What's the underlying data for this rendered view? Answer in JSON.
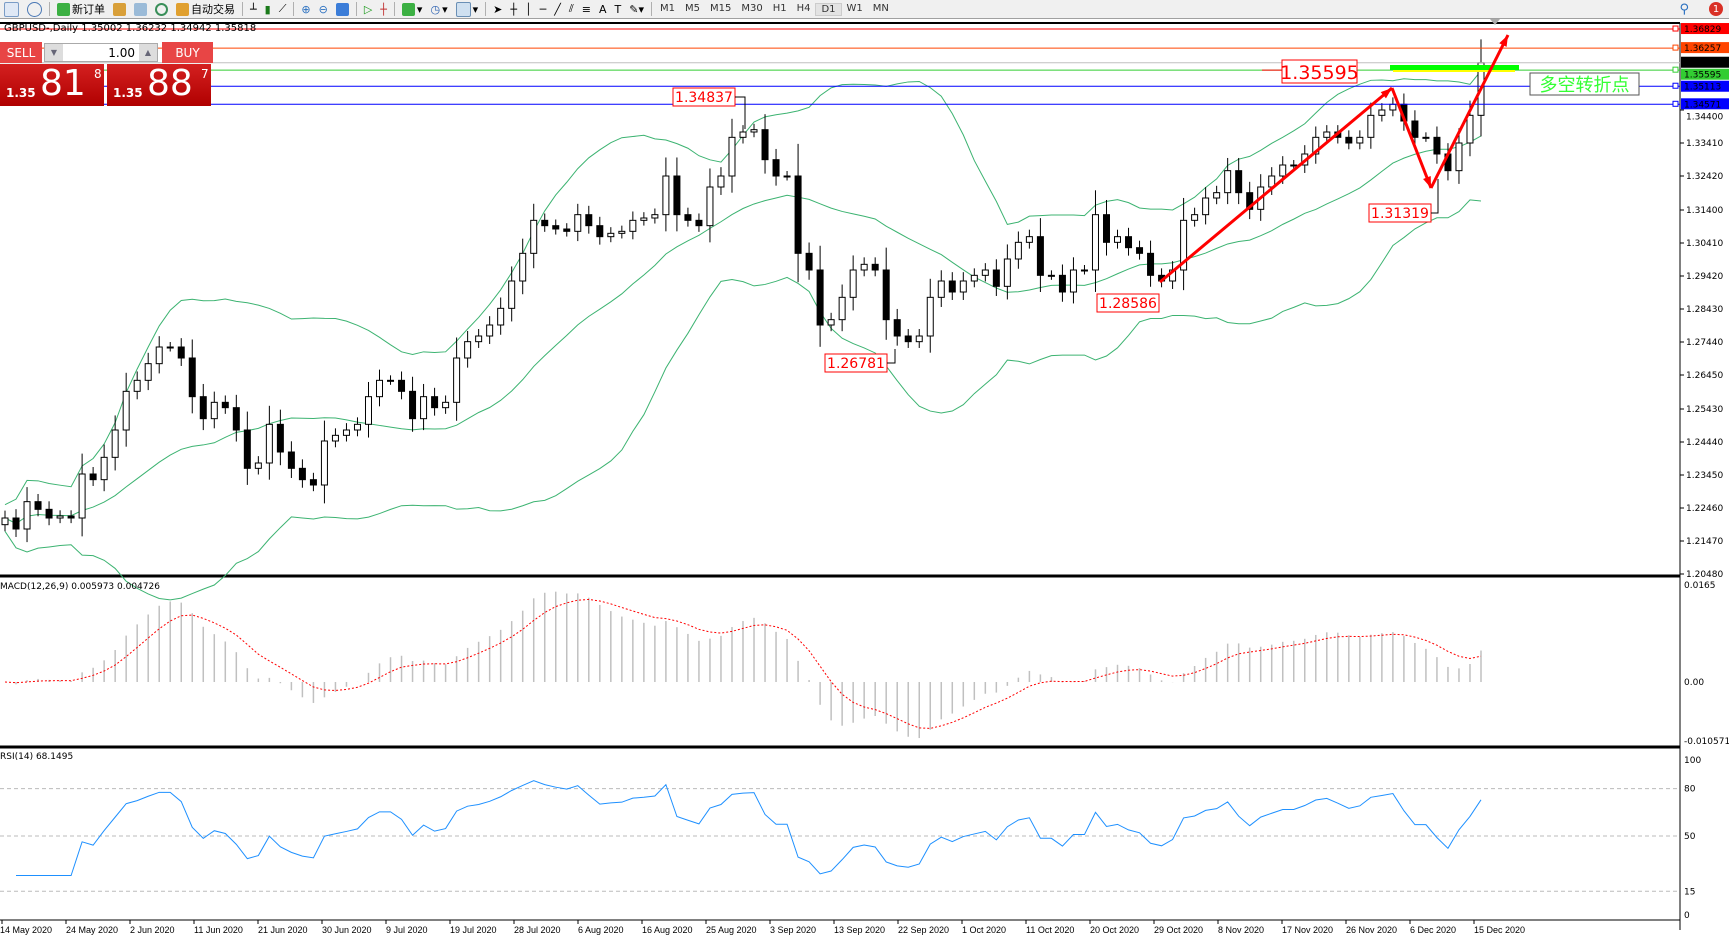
{
  "toolbar": {
    "new_order": "新订单",
    "auto_trading": "自动交易",
    "timeframes": [
      "M1",
      "M5",
      "M15",
      "M30",
      "H1",
      "H4",
      "D1",
      "W1",
      "MN"
    ],
    "active_timeframe": "D1",
    "notification_count": "1"
  },
  "chart": {
    "title": "GBPUSD-,Daily  1.35002 1.36232 1.34942 1.35818",
    "symbol": "GBPUSD-",
    "period": "Daily",
    "ohlc": {
      "open": 1.35002,
      "high": 1.36232,
      "low": 1.34942,
      "close": 1.35818
    },
    "price_ticks": [
      "1.34400",
      "1.33410",
      "1.32420",
      "1.31400",
      "1.30410",
      "1.29420",
      "1.28430",
      "1.27440",
      "1.26450",
      "1.25430",
      "1.24440",
      "1.23450",
      "1.22460",
      "1.21470",
      "1.20480"
    ],
    "date_labels": [
      "14 May 2020",
      "24 May 2020",
      "2 Jun 2020",
      "11 Jun 2020",
      "21 Jun 2020",
      "30 Jun 2020",
      "9 Jul 2020",
      "19 Jul 2020",
      "28 Jul 2020",
      "6 Aug 2020",
      "16 Aug 2020",
      "25 Aug 2020",
      "3 Sep 2020",
      "13 Sep 2020",
      "22 Sep 2020",
      "1 Oct 2020",
      "11 Oct 2020",
      "20 Oct 2020",
      "29 Oct 2020",
      "8 Nov 2020",
      "17 Nov 2020",
      "26 Nov 2020",
      "6 Dec 2020",
      "15 Dec 2020"
    ],
    "closes": [
      1.2216,
      1.2183,
      1.2265,
      1.2242,
      1.2216,
      1.2222,
      1.2216,
      1.2348,
      1.2331,
      1.2398,
      1.248,
      1.2596,
      1.2629,
      1.2679,
      1.2729,
      1.2729,
      1.2696,
      1.258,
      1.2514,
      1.2563,
      1.2547,
      1.248,
      1.2365,
      1.2381,
      1.2497,
      1.2414,
      1.2365,
      1.2331,
      1.2315,
      1.2447,
      1.2464,
      1.248,
      1.2497,
      1.258,
      1.2629,
      1.2629,
      1.2596,
      1.2514,
      1.258,
      1.2547,
      1.2563,
      1.2696,
      1.2745,
      1.2762,
      1.2795,
      1.2845,
      1.2927,
      1.301,
      1.3109,
      1.3093,
      1.3083,
      1.3076,
      1.3126,
      1.3093,
      1.306,
      1.307,
      1.3076,
      1.3109,
      1.3116,
      1.3126,
      1.3242,
      1.3126,
      1.3109,
      1.3093,
      1.3209,
      1.3242,
      1.3358,
      1.3374,
      1.3381,
      1.3291,
      1.3242,
      1.3242,
      1.301,
      1.296,
      1.2795,
      1.2811,
      1.2878,
      1.296,
      1.2977,
      1.296,
      1.2811,
      1.2762,
      1.2745,
      1.2762,
      1.2878,
      1.2927,
      1.2894,
      1.2927,
      1.2944,
      1.296,
      1.2911,
      1.2993,
      1.3043,
      1.306,
      1.2944,
      1.2944,
      1.2894,
      1.296,
      1.296,
      1.3126,
      1.3043,
      1.306,
      1.3027,
      1.301,
      1.2944,
      1.2927,
      1.296,
      1.3109,
      1.3126,
      1.3176,
      1.3192,
      1.3258,
      1.3192,
      1.3142,
      1.3209,
      1.3242,
      1.3275,
      1.3275,
      1.3308,
      1.3358,
      1.3374,
      1.3358,
      1.3341,
      1.3358,
      1.3424,
      1.344,
      1.3457,
      1.3407,
      1.3358,
      1.3358,
      1.3308,
      1.3258,
      1.3341,
      1.3424,
      1.35818
    ],
    "levels": [
      {
        "price": "1.36829",
        "color": "#ff0000"
      },
      {
        "price": "1.36257",
        "color": "#ff4500"
      },
      {
        "price": "1.35818",
        "color": "#000000"
      },
      {
        "price": "1.35595",
        "color": "#32cd32"
      },
      {
        "price": "1.35113",
        "color": "#0000ff"
      },
      {
        "price": "1.34571",
        "color": "#0000ff"
      }
    ],
    "annotations": {
      "big_level": "1.35595",
      "high_aug": "1.34837",
      "low_sep": "1.26781",
      "low_oct": "1.28586",
      "low_dec": "1.31319",
      "turning_point": "多空转折点"
    },
    "colors": {
      "band": "#3cb371",
      "arrow": "#ff0000",
      "macd_hist": "#c0c0c0",
      "macd_signal": "#ff0000",
      "rsi": "#1e90ff"
    }
  },
  "trade_panel": {
    "sell_label": "SELL",
    "buy_label": "BUY",
    "lot": "1.00",
    "sell_prefix": "1.35",
    "sell_big": "81",
    "sell_sup": "8",
    "buy_prefix": "1.35",
    "buy_big": "88",
    "buy_sup": "7"
  },
  "macd": {
    "label": "MACD(12,26,9) 0.005973 0.004726",
    "ticks": [
      "0.0165",
      "0.00",
      "-0.010571"
    ]
  },
  "rsi": {
    "label": "RSI(14) 68.1495",
    "ticks": [
      "100",
      "80",
      "50",
      "15",
      "0"
    ]
  }
}
